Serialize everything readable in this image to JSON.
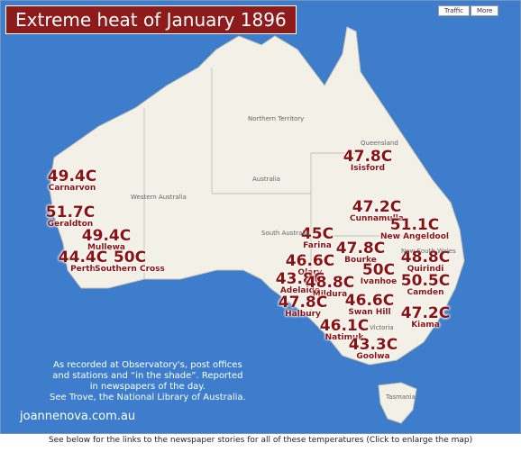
{
  "title": "Extreme heat of January 1896",
  "controls": [
    "Traffic",
    "More"
  ],
  "map_labels": [
    "Northern Territory",
    "Western Australia",
    "Australia",
    "South Australia",
    "Queensland",
    "New South Wales",
    "Victoria",
    "Tasmania"
  ],
  "readings": [
    {
      "temp": "49.4C",
      "place": "Carnarvon"
    },
    {
      "temp": "51.7C",
      "place": "Geraldton"
    },
    {
      "temp": "49.4C",
      "place": "Mullewa"
    },
    {
      "temp": "44.4C",
      "place": "Perth"
    },
    {
      "temp": "50C",
      "place": "Southern Cross"
    },
    {
      "temp": "47.8C",
      "place": "Isisford"
    },
    {
      "temp": "47.2C",
      "place": "Cunnamulla"
    },
    {
      "temp": "51.1C",
      "place": "New Angeldool"
    },
    {
      "temp": "45C",
      "place": "Farina"
    },
    {
      "temp": "47.8C",
      "place": "Bourke"
    },
    {
      "temp": "48.8C",
      "place": "Quirindi"
    },
    {
      "temp": "46.6C",
      "place": "Olary"
    },
    {
      "temp": "50C",
      "place": "Ivanhoe"
    },
    {
      "temp": "43.8C",
      "place": "Adelaide"
    },
    {
      "temp": "48.8C",
      "place": "Mildura"
    },
    {
      "temp": "50.5C",
      "place": "Camden"
    },
    {
      "temp": "47.8C",
      "place": "Halbury"
    },
    {
      "temp": "46.6C",
      "place": "Swan Hill"
    },
    {
      "temp": "47.2C",
      "place": "Kiama"
    },
    {
      "temp": "46.1C",
      "place": "Natimuk"
    },
    {
      "temp": "43.3C",
      "place": "Goolwa"
    }
  ],
  "note": [
    "As recorded at Observatory's, post offices",
    "and stations and “in the shade”. Reported",
    "in newspapers of the day.",
    "See Trove, the National Library of Australia."
  ],
  "website": "joannenova.com.au",
  "caption": "See below for the links to the newspaper stories for all of these temperatures (Click to enlarge the map)"
}
